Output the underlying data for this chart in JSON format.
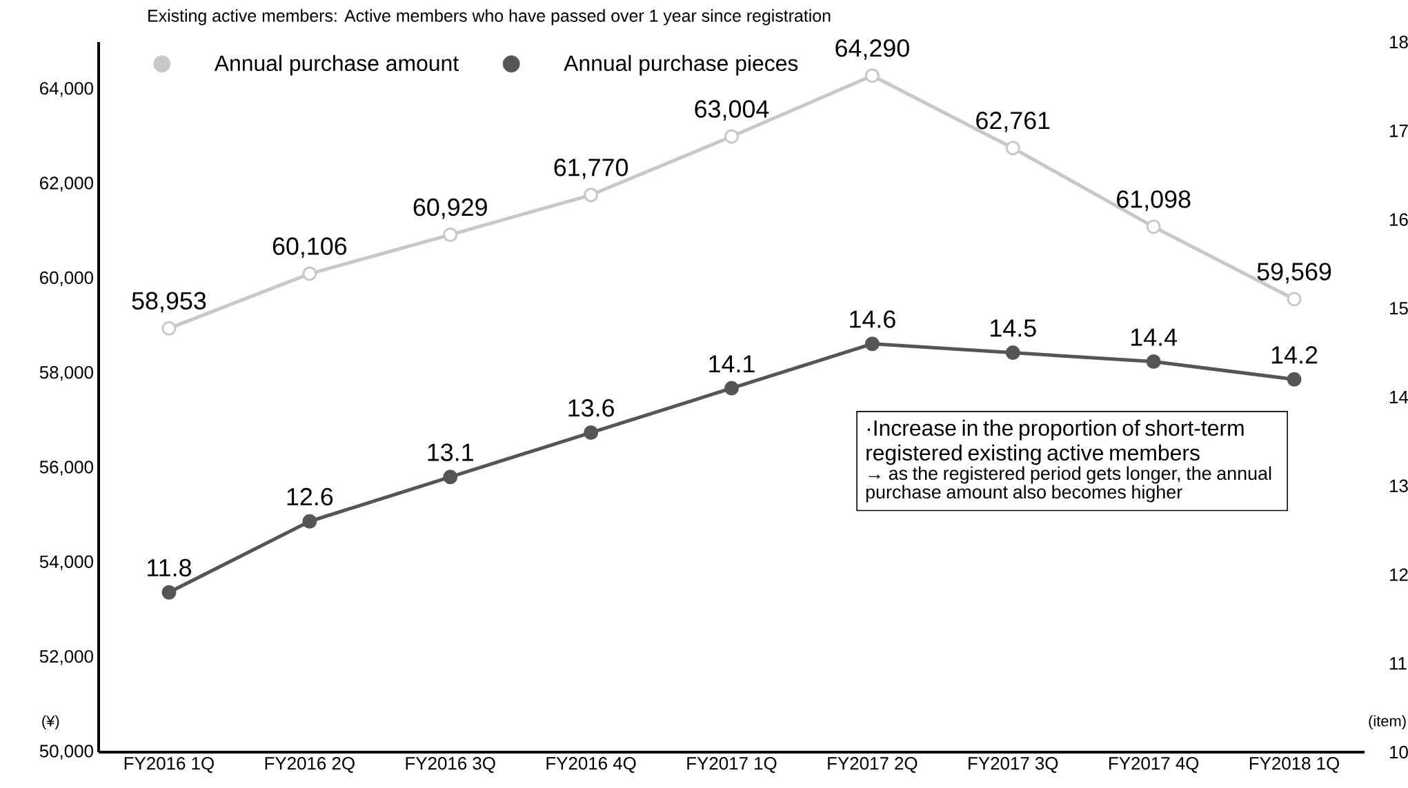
{
  "chart_data": {
    "type": "line",
    "title": "Existing active members: Active members who have passed over 1 year since registration",
    "ylabel": "(¥)",
    "y2label": "(item)",
    "categories": [
      "FY2016 1Q",
      "FY2016 2Q",
      "FY2016 3Q",
      "FY2016 4Q",
      "FY2017 1Q",
      "FY2017 2Q",
      "FY2017 3Q",
      "FY2017 4Q",
      "FY2018 1Q"
    ],
    "series": [
      {
        "name": "Annual purchase amount",
        "color": "#c8c8c8",
        "values": [
          58953,
          60106,
          60929,
          61770,
          63004,
          64290,
          62761,
          61098,
          59569
        ],
        "value_labels": [
          "58,953",
          "60,106",
          "60,929",
          "61,770",
          "63,004",
          "64,290",
          "62,761",
          "61,098",
          "59,569"
        ]
      },
      {
        "name": "Annual purchase pieces",
        "color": "#555555",
        "axis": "y2",
        "values": [
          11.8,
          12.6,
          13.1,
          13.6,
          14.1,
          14.6,
          14.5,
          14.4,
          14.2
        ],
        "value_labels": [
          "11.8",
          "12.6",
          "13.1",
          "13.6",
          "14.1",
          "14.6",
          "14.5",
          "14.4",
          "14.2"
        ]
      }
    ],
    "ylim": [
      50000,
      65000
    ],
    "yticks": [
      {
        "value": 50000,
        "label": "50,000"
      },
      {
        "value": 52000,
        "label": "52,000"
      },
      {
        "value": 54000,
        "label": "54,000"
      },
      {
        "value": 56000,
        "label": "56,000"
      },
      {
        "value": 58000,
        "label": "58,000"
      },
      {
        "value": 60000,
        "label": "60,000"
      },
      {
        "value": 62000,
        "label": "62,000"
      },
      {
        "value": 64000,
        "label": "64,000"
      }
    ],
    "y2lim": [
      10,
      18
    ],
    "y2ticks": [
      10,
      11,
      12,
      13,
      14,
      15,
      16,
      17,
      18
    ],
    "annotations": [
      "·Increase in the proportion of short-term registered existing active members",
      "→ as the registered period gets longer, the annual purchase amount also becomes higher"
    ],
    "legend": "top left",
    "marker": "circle",
    "line_style": "solid",
    "grid": false
  }
}
